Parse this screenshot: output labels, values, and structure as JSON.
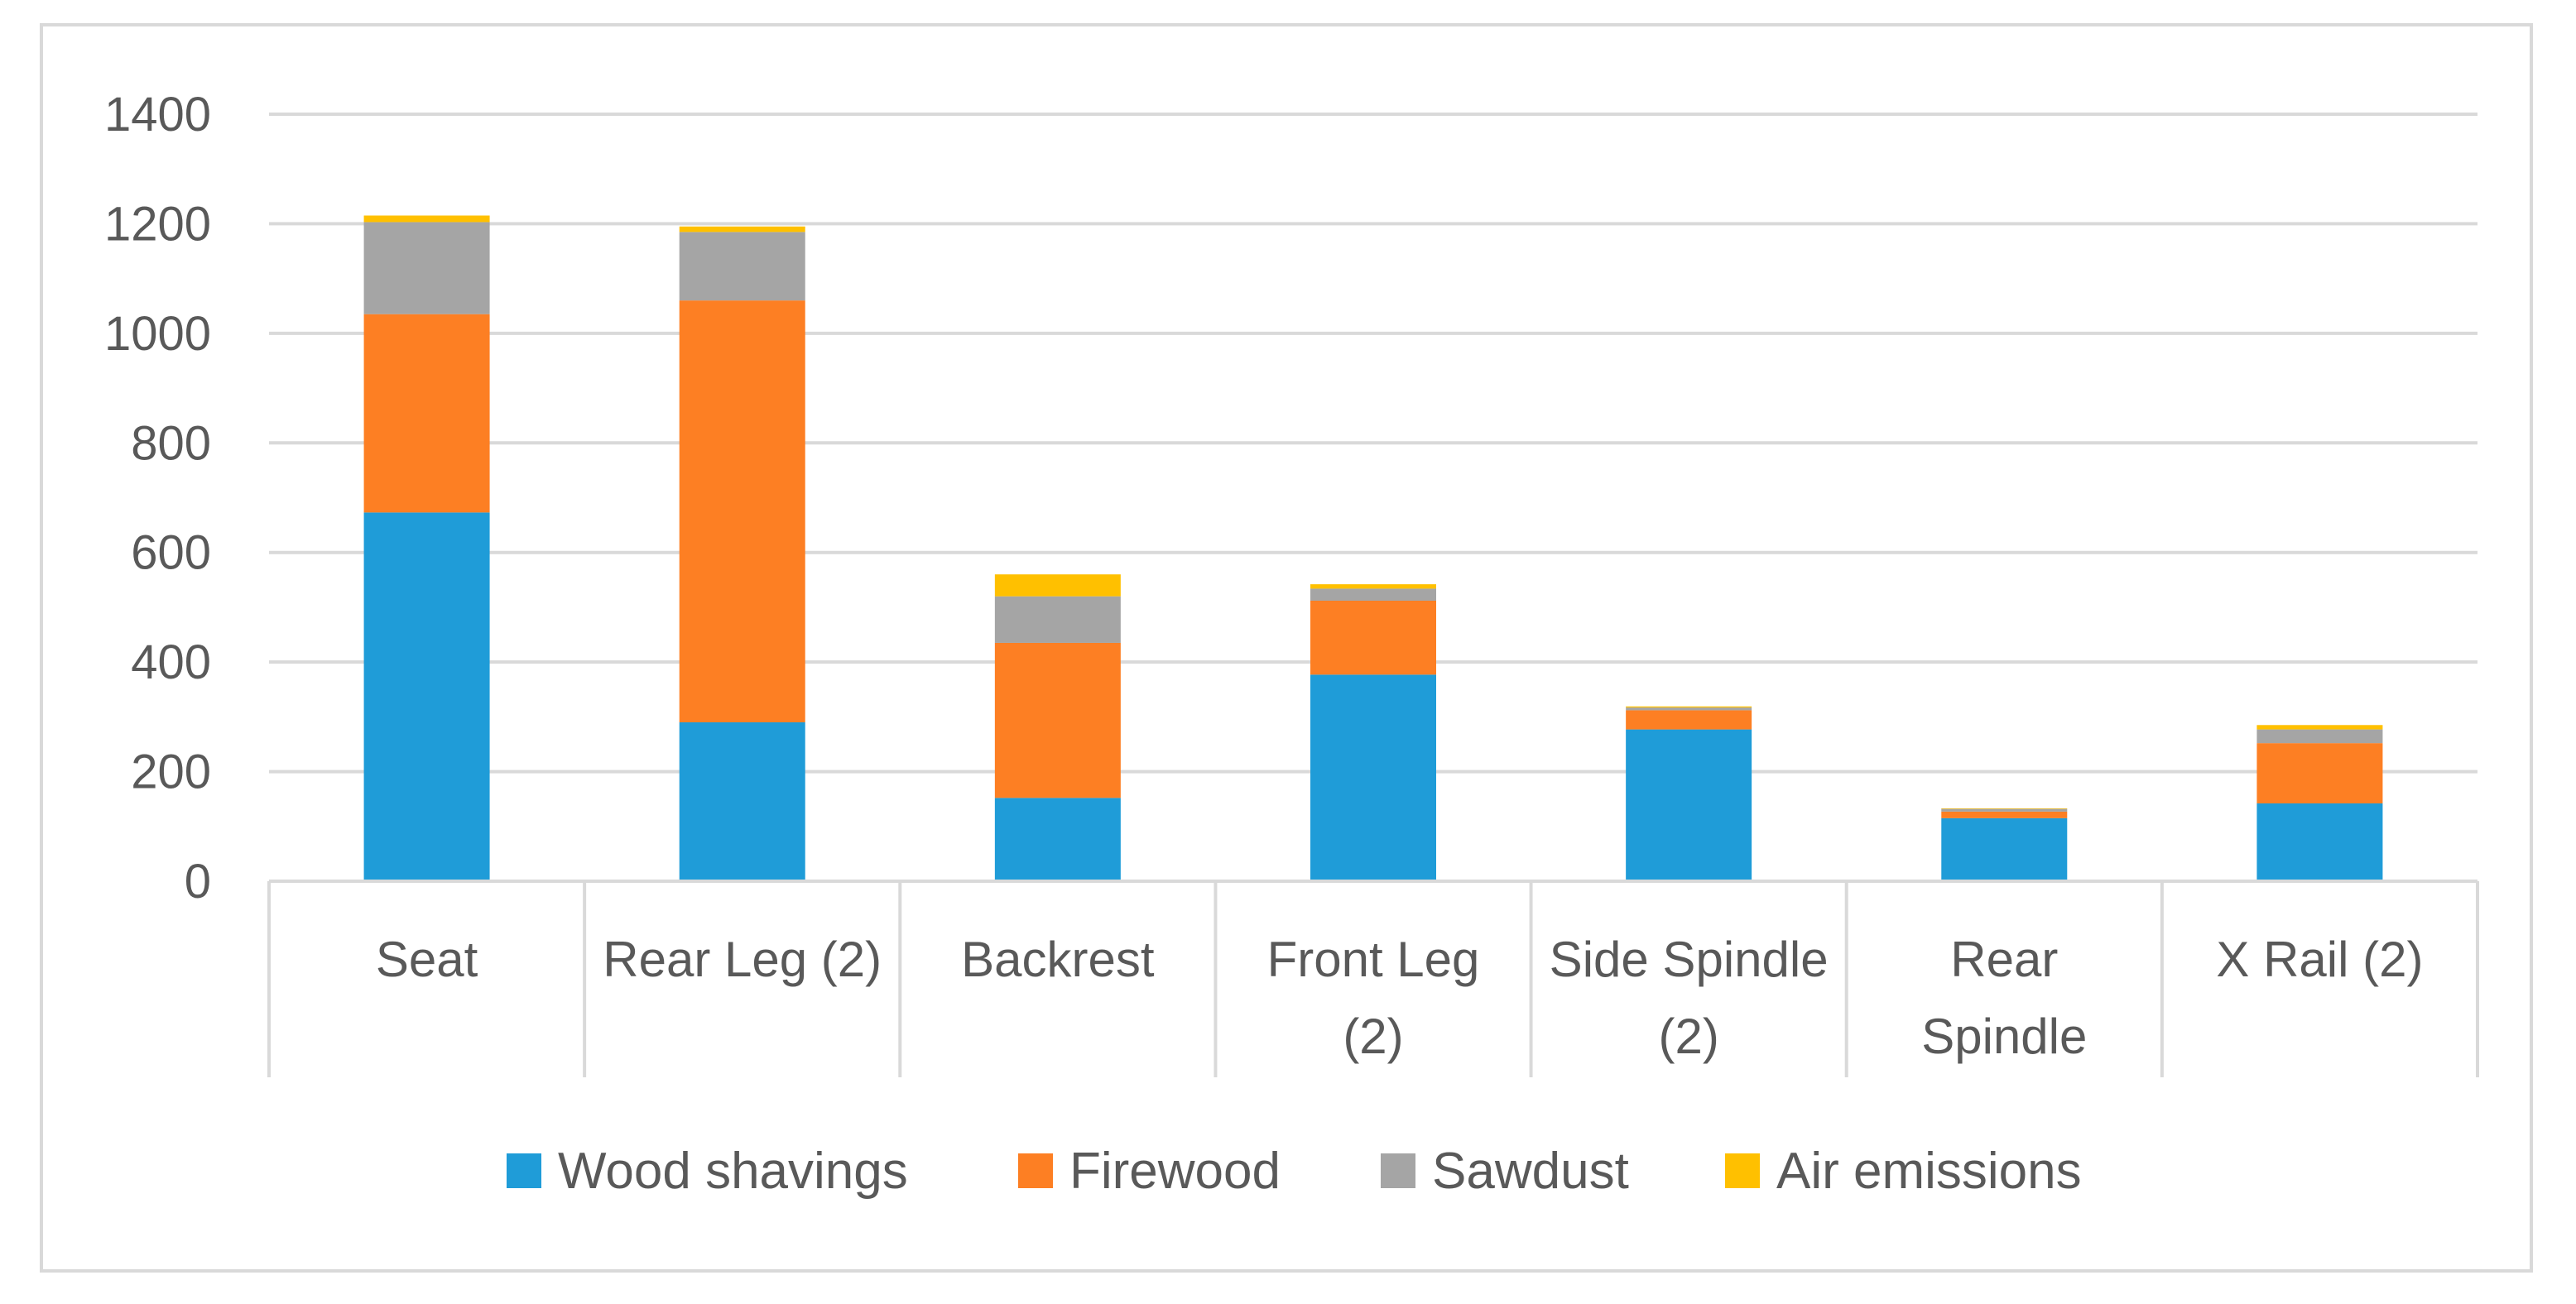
{
  "chart_data": {
    "type": "bar",
    "stacked": true,
    "categories": [
      [
        "Seat"
      ],
      [
        "Rear Leg (2)"
      ],
      [
        "Backrest"
      ],
      [
        "Front Leg",
        "(2)"
      ],
      [
        "Side Spindle",
        "(2)"
      ],
      [
        "Rear",
        "Spindle"
      ],
      [
        "X Rail (2)"
      ]
    ],
    "series": [
      {
        "name": "Wood shavings",
        "color": "#1f9cd8",
        "values": [
          673,
          290,
          152,
          377,
          277,
          115,
          142
        ]
      },
      {
        "name": "Firewood",
        "color": "#fd7f23",
        "values": [
          362,
          770,
          283,
          135,
          35,
          12,
          110
        ]
      },
      {
        "name": "Sawdust",
        "color": "#a5a5a5",
        "values": [
          168,
          125,
          85,
          22,
          5,
          5,
          25
        ]
      },
      {
        "name": "Air emissions",
        "color": "#ffc000",
        "values": [
          12,
          10,
          40,
          8,
          2,
          1,
          8
        ]
      }
    ],
    "yticks": [
      "0",
      "200",
      "400",
      "600",
      "800",
      "1000",
      "1200",
      "1400"
    ],
    "ylim": [
      0,
      1400
    ],
    "title": "",
    "xlabel": "",
    "ylabel": "",
    "grid": true,
    "legend": "bottom"
  }
}
